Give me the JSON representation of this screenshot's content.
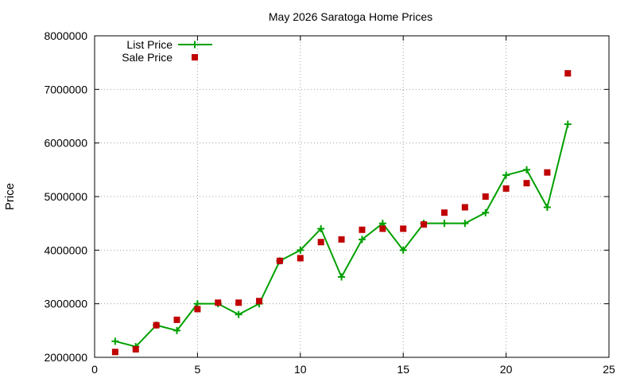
{
  "chart_data": {
    "type": "line",
    "title": "May 2026 Saratoga Home Prices",
    "xlabel": "",
    "ylabel": "Price",
    "xlim": [
      0,
      25
    ],
    "ylim": [
      2000000,
      8000000
    ],
    "xticks": [
      "0",
      "5",
      "10",
      "15",
      "20",
      "25"
    ],
    "yticks": [
      "2000000",
      "3000000",
      "4000000",
      "5000000",
      "6000000",
      "7000000",
      "8000000"
    ],
    "grid": true,
    "legend_position": "top-left",
    "x": [
      1,
      2,
      3,
      4,
      5,
      6,
      7,
      8,
      9,
      10,
      11,
      12,
      13,
      14,
      15,
      16,
      17,
      18,
      19,
      20,
      21,
      22,
      23
    ],
    "series": [
      {
        "name": "List Price",
        "style": "line-plus",
        "color": "#00a000",
        "values": [
          2300000,
          2200000,
          2600000,
          2500000,
          3000000,
          3000000,
          2800000,
          3000000,
          3800000,
          4000000,
          4400000,
          3500000,
          4200000,
          4500000,
          4000000,
          4500000,
          4500000,
          4500000,
          4700000,
          5400000,
          5500000,
          4800000,
          6350000
        ]
      },
      {
        "name": "Sale Price",
        "style": "square-points",
        "color": "#c00000",
        "values": [
          2100000,
          2150000,
          2600000,
          2700000,
          2900000,
          3020000,
          3020000,
          3050000,
          3800000,
          3850000,
          4150000,
          4200000,
          4380000,
          4400000,
          4400000,
          4480000,
          4700000,
          4800000,
          5000000,
          5150000,
          5250000,
          5450000,
          7300000
        ]
      }
    ]
  }
}
